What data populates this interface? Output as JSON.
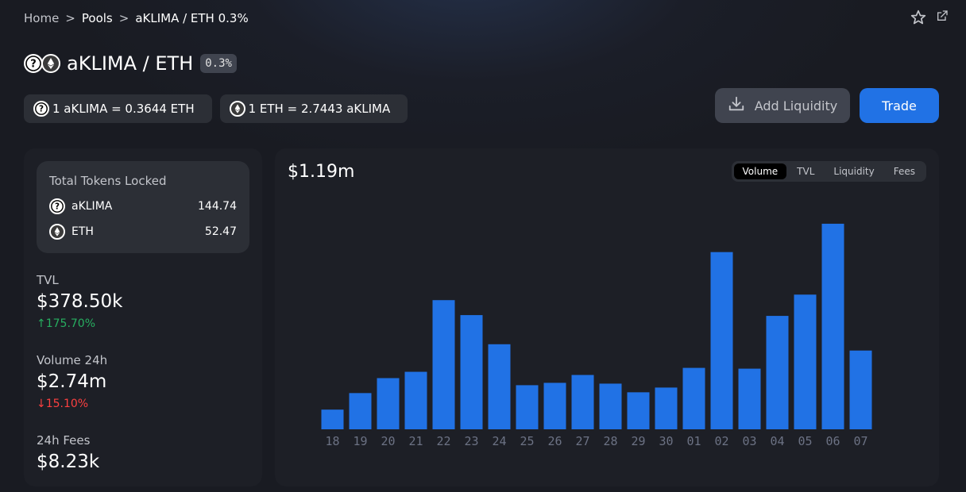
{
  "breadcrumb": {
    "home": "Home",
    "sep1": ">",
    "pools": "Pools",
    "sep2": ">",
    "current": "aKLIMA / ETH 0.3%"
  },
  "header": {
    "title": "aKLIMA / ETH",
    "fee": "0.3%",
    "price1": "1 aKLIMA = 0.3644 ETH",
    "price2": "1 ETH = 2.7443 aKLIMA",
    "icons": [
      "question-token-icon",
      "eth-token-icon",
      "star-icon",
      "external-link-icon"
    ]
  },
  "actions": {
    "add_liquidity": "Add Liquidity",
    "trade": "Trade"
  },
  "locked": {
    "title": "Total Tokens Locked",
    "tokens": [
      {
        "symbol": "aKLIMA",
        "amount": "144.74"
      },
      {
        "symbol": "ETH",
        "amount": "52.47"
      }
    ]
  },
  "stats": {
    "tvl": {
      "label": "TVL",
      "value": "$378.50k",
      "change": "↑175.70%"
    },
    "volume": {
      "label": "Volume 24h",
      "value": "$2.74m",
      "change": "↓15.10%"
    },
    "fees": {
      "label": "24h Fees",
      "value": "$8.23k"
    }
  },
  "colors": {
    "accent": "#2172e5",
    "up": "#27ae60",
    "down": "#fd4040",
    "bar": "#2172e5"
  },
  "chart": {
    "value": "$1.19m",
    "tabs": [
      "Volume",
      "TVL",
      "Liquidity",
      "Fees"
    ],
    "active_tab": "Volume"
  },
  "chart_data": {
    "type": "bar",
    "categories": [
      "18",
      "19",
      "20",
      "21",
      "22",
      "23",
      "24",
      "25",
      "26",
      "27",
      "28",
      "29",
      "30",
      "01",
      "02",
      "03",
      "04",
      "05",
      "06",
      "07"
    ],
    "values": [
      0.25,
      0.46,
      0.65,
      0.73,
      1.64,
      1.45,
      1.08,
      0.56,
      0.59,
      0.69,
      0.58,
      0.47,
      0.53,
      0.78,
      2.25,
      0.77,
      1.44,
      1.71,
      2.61,
      1.0
    ],
    "ylim": [
      0,
      2.7
    ],
    "grid": false
  }
}
